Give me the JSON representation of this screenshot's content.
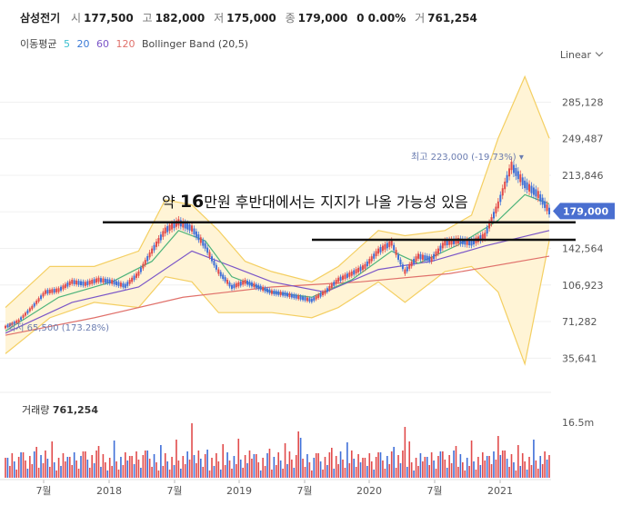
{
  "header": {
    "name": "삼성전기",
    "open_label": "시",
    "open": "177,500",
    "high_label": "고",
    "high": "182,000",
    "low_label": "저",
    "low": "175,000",
    "close_label": "종",
    "close": "179,000",
    "change": "0 0.00%",
    "volume_label": "거",
    "volume": "761,254"
  },
  "legend": {
    "ma_label": "이동평균",
    "ma5": "5",
    "ma20": "20",
    "ma60": "60",
    "ma120": "120",
    "bb_label": "Bollinger Band (20,5)",
    "colors": {
      "ma5": "#3cc0d0",
      "ma20": "#3a79d6",
      "ma60": "#7a55c8",
      "ma120": "#e0706a"
    }
  },
  "scale_mode": "Linear",
  "annotation": {
    "prefix": "약 ",
    "number": "16",
    "suffix": "만원 후반대에서는 지지가 나올 가능성 있음"
  },
  "volume_panel": {
    "label": "거래량",
    "value": "761,254",
    "axis_label": "16.5m"
  },
  "colors": {
    "up": "#e14b4b",
    "down": "#3f6fd8",
    "band_fill": "#fff4d6",
    "band_line": "#f4cf62",
    "current": "#4a6fd0"
  },
  "chart_data": {
    "type": "candlestick",
    "y_ticks": [
      285128,
      249487,
      213846,
      178205,
      142564,
      106923,
      71282,
      35641
    ],
    "y_tick_labels": [
      "285,128",
      "249,487",
      "213,846",
      "",
      "142,564",
      "106,923",
      "71,282",
      "35,641"
    ],
    "x_ticks": [
      "7월",
      "2018",
      "7월",
      "2019",
      "7월",
      "2020",
      "7월",
      "2021"
    ],
    "current_price": 179000,
    "current_label": "179,000",
    "high_marker": {
      "label": "최고 223,000 (-19.73%)",
      "value": 223000,
      "arrow": "▾"
    },
    "low_marker": {
      "label": "최저 65,500 (173.28%)",
      "value": 65500
    },
    "support_lines": [
      168000,
      151000
    ],
    "price_path": [
      [
        0,
        66000
      ],
      [
        6,
        72000
      ],
      [
        12,
        85000
      ],
      [
        18,
        100000
      ],
      [
        24,
        102000
      ],
      [
        30,
        110000
      ],
      [
        36,
        108000
      ],
      [
        42,
        112000
      ],
      [
        48,
        110000
      ],
      [
        54,
        106000
      ],
      [
        60,
        118000
      ],
      [
        66,
        140000
      ],
      [
        72,
        160000
      ],
      [
        78,
        168000
      ],
      [
        84,
        162000
      ],
      [
        90,
        145000
      ],
      [
        96,
        120000
      ],
      [
        102,
        105000
      ],
      [
        108,
        110000
      ],
      [
        114,
        105000
      ],
      [
        120,
        100000
      ],
      [
        126,
        98000
      ],
      [
        132,
        95000
      ],
      [
        138,
        92000
      ],
      [
        144,
        100000
      ],
      [
        150,
        112000
      ],
      [
        156,
        118000
      ],
      [
        162,
        125000
      ],
      [
        168,
        140000
      ],
      [
        174,
        148000
      ],
      [
        180,
        120000
      ],
      [
        186,
        135000
      ],
      [
        192,
        132000
      ],
      [
        198,
        148000
      ],
      [
        204,
        150000
      ],
      [
        210,
        148000
      ],
      [
        216,
        155000
      ],
      [
        222,
        185000
      ],
      [
        228,
        223000
      ],
      [
        234,
        205000
      ],
      [
        240,
        195000
      ],
      [
        245,
        179000
      ]
    ],
    "ma20_path": [
      [
        0,
        62000
      ],
      [
        24,
        95000
      ],
      [
        48,
        110000
      ],
      [
        66,
        130000
      ],
      [
        78,
        160000
      ],
      [
        90,
        150000
      ],
      [
        102,
        115000
      ],
      [
        120,
        100000
      ],
      [
        138,
        95000
      ],
      [
        156,
        112000
      ],
      [
        174,
        140000
      ],
      [
        186,
        128000
      ],
      [
        204,
        146000
      ],
      [
        222,
        170000
      ],
      [
        234,
        195000
      ],
      [
        245,
        186000
      ]
    ],
    "ma60_path": [
      [
        0,
        60000
      ],
      [
        30,
        90000
      ],
      [
        60,
        105000
      ],
      [
        84,
        140000
      ],
      [
        102,
        125000
      ],
      [
        120,
        110000
      ],
      [
        144,
        100000
      ],
      [
        168,
        122000
      ],
      [
        192,
        130000
      ],
      [
        216,
        145000
      ],
      [
        245,
        160000
      ]
    ],
    "ma120_path": [
      [
        0,
        58000
      ],
      [
        40,
        75000
      ],
      [
        80,
        95000
      ],
      [
        120,
        105000
      ],
      [
        160,
        110000
      ],
      [
        200,
        118000
      ],
      [
        245,
        135000
      ]
    ],
    "band_upper": [
      [
        0,
        85000
      ],
      [
        20,
        125000
      ],
      [
        40,
        125000
      ],
      [
        60,
        140000
      ],
      [
        72,
        190000
      ],
      [
        84,
        185000
      ],
      [
        96,
        160000
      ],
      [
        108,
        130000
      ],
      [
        120,
        120000
      ],
      [
        138,
        110000
      ],
      [
        150,
        125000
      ],
      [
        168,
        160000
      ],
      [
        180,
        155000
      ],
      [
        198,
        160000
      ],
      [
        210,
        175000
      ],
      [
        222,
        250000
      ],
      [
        234,
        310000
      ],
      [
        245,
        250000
      ]
    ],
    "band_lower": [
      [
        0,
        40000
      ],
      [
        20,
        75000
      ],
      [
        40,
        90000
      ],
      [
        60,
        85000
      ],
      [
        72,
        115000
      ],
      [
        84,
        110000
      ],
      [
        96,
        80000
      ],
      [
        108,
        80000
      ],
      [
        120,
        80000
      ],
      [
        138,
        75000
      ],
      [
        150,
        85000
      ],
      [
        168,
        110000
      ],
      [
        180,
        90000
      ],
      [
        198,
        120000
      ],
      [
        210,
        125000
      ],
      [
        222,
        100000
      ],
      [
        234,
        30000
      ],
      [
        245,
        150000
      ]
    ]
  }
}
